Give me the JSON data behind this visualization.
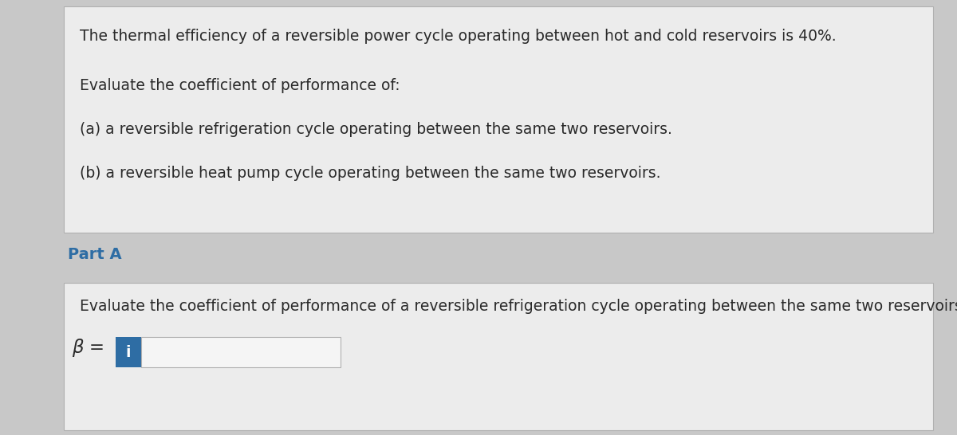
{
  "bg_color": "#c8c8c8",
  "top_panel_bg": "#ececec",
  "bottom_panel_bg": "#ececec",
  "top_panel_text1": "The thermal efficiency of a reversible power cycle operating between hot and cold reservoirs is 40%.",
  "top_panel_text2": "Evaluate the coefficient of performance of:",
  "top_panel_text3": "(a) a reversible refrigeration cycle operating between the same two reservoirs.",
  "top_panel_text4": "(b) a reversible heat pump cycle operating between the same two reservoirs.",
  "part_label": "Part A",
  "part_label_color": "#2e6da4",
  "bottom_panel_text": "Evaluate the coefficient of performance of a reversible refrigeration cycle operating between the same two reservoirs.",
  "beta_label": "β =",
  "input_box_color": "#2e6da4",
  "input_box_icon": "i",
  "input_box_text_color": "#ffffff",
  "normal_text_color": "#2a2a2a",
  "panel_border_color": "#b0b0b0",
  "input_field_bg": "#f5f5f5",
  "text_fontsize": 13.5,
  "part_label_fontsize": 14,
  "fig_width": 12.0,
  "fig_height": 5.46,
  "dpi": 100
}
